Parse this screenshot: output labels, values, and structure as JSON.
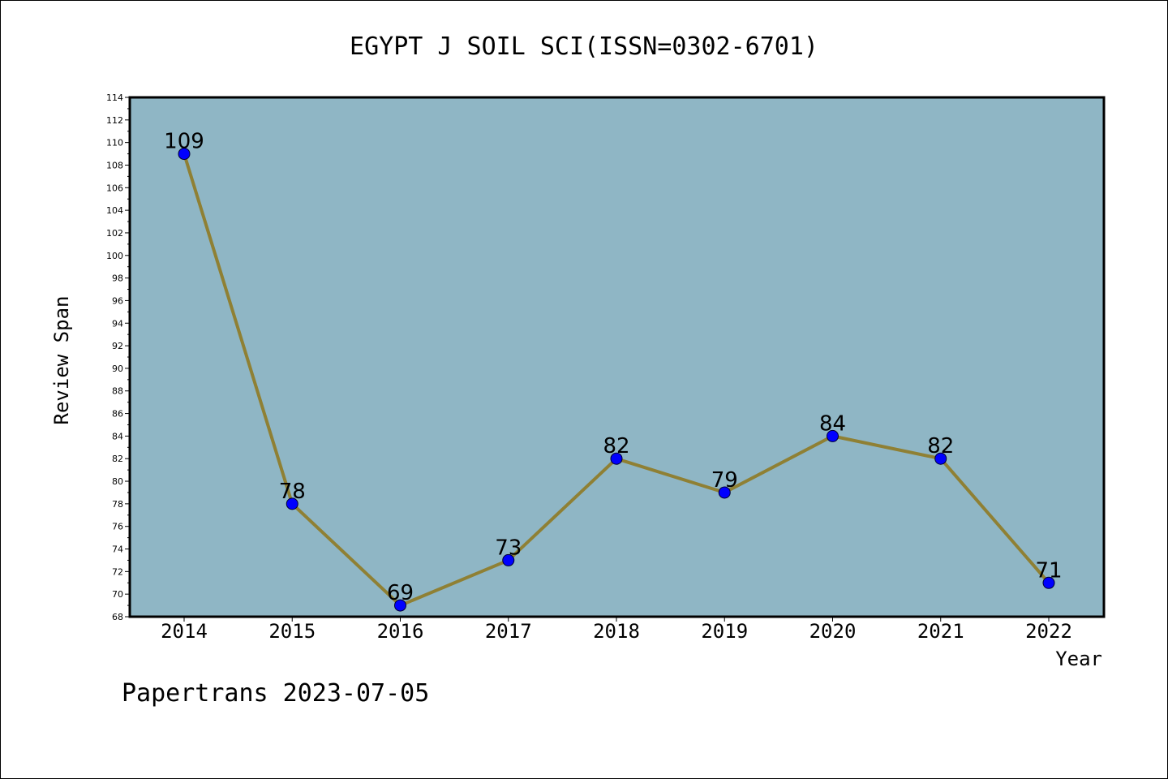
{
  "chart_data": {
    "type": "line",
    "title": "EGYPT J SOIL SCI(ISSN=0302-6701)",
    "xlabel": "Year",
    "ylabel": "Review Span",
    "categories": [
      "2014",
      "2015",
      "2016",
      "2017",
      "2018",
      "2019",
      "2020",
      "2021",
      "2022"
    ],
    "series": [
      {
        "values": [
          109,
          78,
          69,
          73,
          82,
          79,
          84,
          82,
          71
        ]
      }
    ],
    "ylim": [
      68,
      114
    ],
    "y_ticks": [
      68,
      70,
      72,
      74,
      76,
      78,
      80,
      82,
      84,
      86,
      88,
      90,
      92,
      94,
      96,
      98,
      100,
      102,
      104,
      106,
      108,
      110,
      112,
      114
    ],
    "grid": false,
    "plot_background": "#8fb6c5",
    "line_color": "#8f8034",
    "marker_color": "#0000ff"
  },
  "footer": "Papertrans 2023-07-05"
}
